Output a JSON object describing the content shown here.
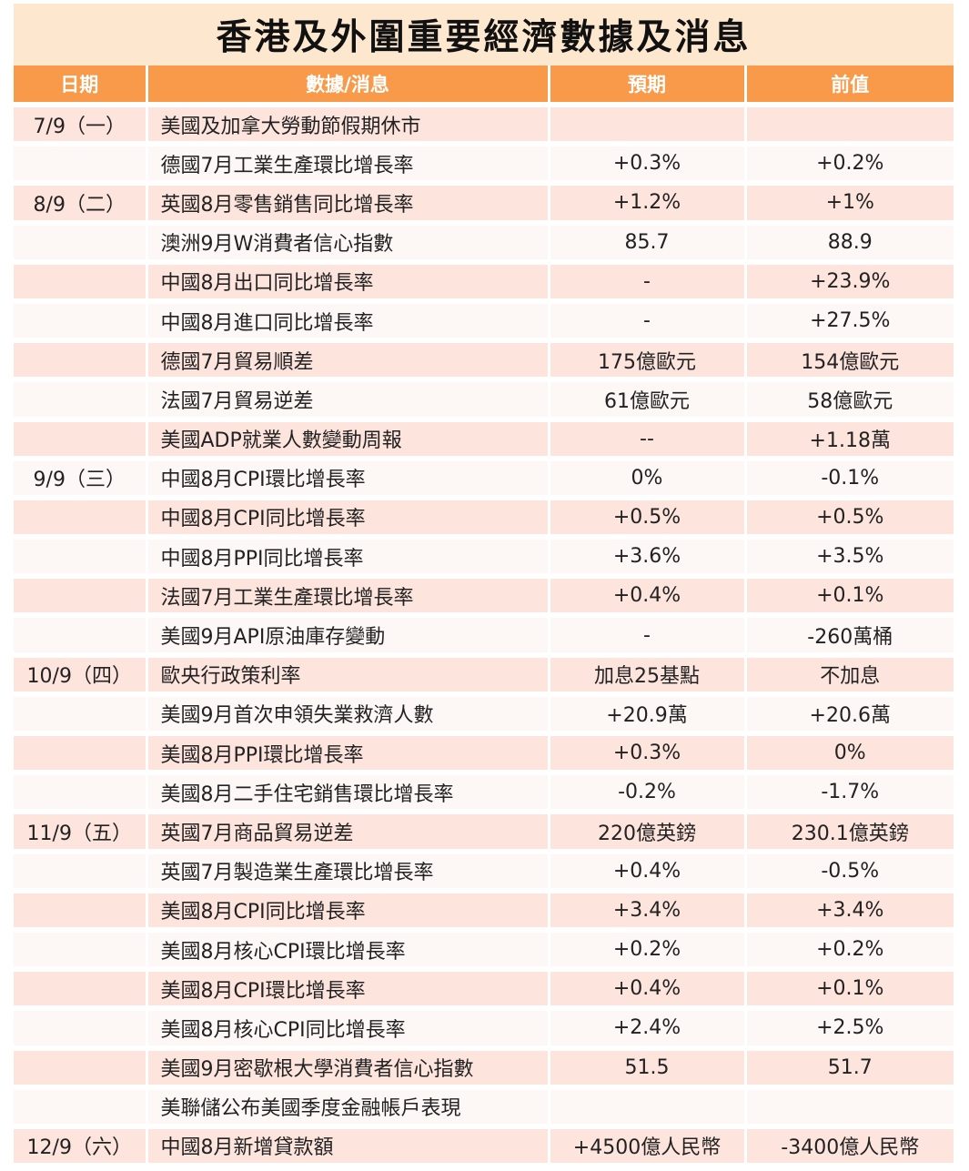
{
  "title": "香港及外圍重要經濟數據及消息",
  "headers": [
    "日期",
    "數據/消息",
    "預期",
    "前值"
  ],
  "rows": [
    {
      "date": "7/9（一）",
      "item": "美國及加拿大勞動節假期休市",
      "expected": "",
      "previous": ""
    },
    {
      "date": "",
      "item": "德國7月工業生產環比增長率",
      "expected": "+0.3%",
      "previous": "+0.2%"
    },
    {
      "date": "8/9（二）",
      "item": "英國8月零售銷售同比增長率",
      "expected": "+1.2%",
      "previous": "+1%"
    },
    {
      "date": "",
      "item": "澳洲9月W消費者信心指數",
      "expected": "85.7",
      "previous": "88.9"
    },
    {
      "date": "",
      "item": "中國8月出口同比增長率",
      "expected": "-",
      "previous": "+23.9%"
    },
    {
      "date": "",
      "item": "中國8月進口同比增長率",
      "expected": "-",
      "previous": "+27.5%"
    },
    {
      "date": "",
      "item": "德國7月貿易順差",
      "expected": "175億歐元",
      "previous": "154億歐元"
    },
    {
      "date": "",
      "item": "法國7月貿易逆差",
      "expected": "61億歐元",
      "previous": "58億歐元"
    },
    {
      "date": "",
      "item": "美國ADP就業人數變動周報",
      "expected": "--",
      "previous": "+1.18萬"
    },
    {
      "date": "9/9（三）",
      "item": "中國8月CPI環比增長率",
      "expected": "0%",
      "previous": "-0.1%"
    },
    {
      "date": "",
      "item": "中國8月CPI同比增長率",
      "expected": "+0.5%",
      "previous": "+0.5%"
    },
    {
      "date": "",
      "item": "中國8月PPI同比增長率",
      "expected": "+3.6%",
      "previous": "+3.5%"
    },
    {
      "date": "",
      "item": "法國7月工業生產環比增長率",
      "expected": "+0.4%",
      "previous": "+0.1%"
    },
    {
      "date": "",
      "item": "美國9月API原油庫存變動",
      "expected": "-",
      "previous": "-260萬桶"
    },
    {
      "date": "10/9（四）",
      "item": "歐央行政策利率",
      "expected": "加息25基點",
      "previous": "不加息"
    },
    {
      "date": "",
      "item": "美國9月首次申領失業救濟人數",
      "expected": "+20.9萬",
      "previous": "+20.6萬"
    },
    {
      "date": "",
      "item": "美國8月PPI環比增長率",
      "expected": "+0.3%",
      "previous": "0%"
    },
    {
      "date": "",
      "item": "美國8月二手住宅銷售環比增長率",
      "expected": "-0.2%",
      "previous": "-1.7%"
    },
    {
      "date": "11/9（五）",
      "item": "英國7月商品貿易逆差",
      "expected": "220億英鎊",
      "previous": "230.1億英鎊"
    },
    {
      "date": "",
      "item": "英國7月製造業生產環比增長率",
      "expected": "+0.4%",
      "previous": "-0.5%"
    },
    {
      "date": "",
      "item": "美國8月CPI同比增長率",
      "expected": "+3.4%",
      "previous": "+3.4%"
    },
    {
      "date": "",
      "item": "美國8月核心CPI環比增長率",
      "expected": "+0.2%",
      "previous": "+0.2%"
    },
    {
      "date": "",
      "item": "美國8月CPI環比增長率",
      "expected": "+0.4%",
      "previous": "+0.1%"
    },
    {
      "date": "",
      "item": "美國8月核心CPI同比增長率",
      "expected": "+2.4%",
      "previous": "+2.5%"
    },
    {
      "date": "",
      "item": "美國9月密歇根大學消費者信心指數",
      "expected": "51.5",
      "previous": "51.7"
    },
    {
      "date": "",
      "item": "美聯儲公布美國季度金融帳戶表現",
      "expected": "",
      "previous": ""
    },
    {
      "date": "12/9（六）",
      "item": "中國8月新增貸款額",
      "expected": "+4500億人民幣",
      "previous": "-3400億人民幣"
    }
  ]
}
